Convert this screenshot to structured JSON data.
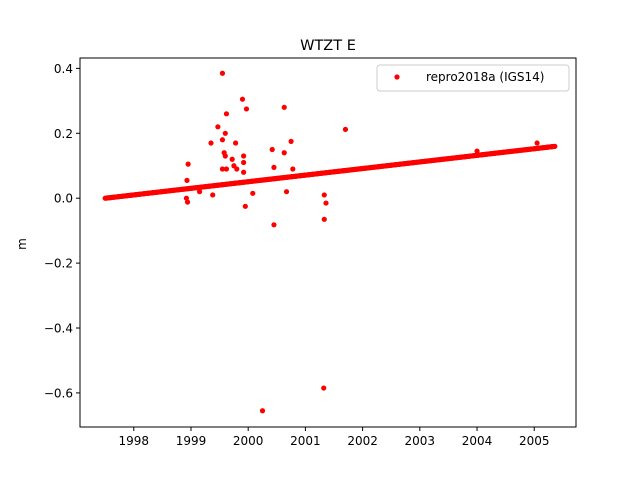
{
  "chart_data": {
    "type": "scatter",
    "title": "WTZT E",
    "xlabel": "",
    "ylabel": "m",
    "xlim": [
      1997.06,
      2005.73
    ],
    "ylim": [
      -0.705,
      0.432
    ],
    "x_ticks": [
      1998,
      1999,
      2000,
      2001,
      2002,
      2003,
      2004,
      2005
    ],
    "x_tick_labels": [
      "1998",
      "1999",
      "2000",
      "2001",
      "2002",
      "2003",
      "2004",
      "2005"
    ],
    "y_ticks": [
      -0.6,
      -0.4,
      -0.2,
      0.0,
      0.2,
      0.4
    ],
    "y_tick_labels": [
      "−0.6",
      "−0.4",
      "−0.2",
      "0.0",
      "0.2",
      "0.4"
    ],
    "grid": false,
    "legend_position": "top-right",
    "series": [
      {
        "name": "repro2018a (IGS14)",
        "color": "#ff0000",
        "marker": "circle",
        "trend": {
          "x_start": 1997.5,
          "y_start": 0.0,
          "x_end": 2005.37,
          "y_end": 0.16,
          "step_years": 0.015
        },
        "outliers": [
          {
            "x": 1998.95,
            "y": 0.105
          },
          {
            "x": 1998.93,
            "y": 0.055
          },
          {
            "x": 1998.92,
            "y": 0.0
          },
          {
            "x": 1998.94,
            "y": -0.012
          },
          {
            "x": 1999.15,
            "y": 0.02
          },
          {
            "x": 1999.35,
            "y": 0.17
          },
          {
            "x": 1999.38,
            "y": 0.01
          },
          {
            "x": 1999.47,
            "y": 0.22
          },
          {
            "x": 1999.55,
            "y": 0.385
          },
          {
            "x": 1999.55,
            "y": 0.18
          },
          {
            "x": 1999.58,
            "y": 0.14
          },
          {
            "x": 1999.6,
            "y": 0.2
          },
          {
            "x": 1999.62,
            "y": 0.26
          },
          {
            "x": 1999.55,
            "y": 0.09
          },
          {
            "x": 1999.62,
            "y": 0.09
          },
          {
            "x": 1999.6,
            "y": 0.13
          },
          {
            "x": 1999.72,
            "y": 0.12
          },
          {
            "x": 1999.75,
            "y": 0.1
          },
          {
            "x": 1999.78,
            "y": 0.17
          },
          {
            "x": 1999.8,
            "y": 0.09
          },
          {
            "x": 1999.9,
            "y": 0.305
          },
          {
            "x": 1999.92,
            "y": 0.13
          },
          {
            "x": 1999.92,
            "y": 0.11
          },
          {
            "x": 1999.92,
            "y": 0.08
          },
          {
            "x": 1999.97,
            "y": 0.275
          },
          {
            "x": 1999.95,
            "y": -0.025
          },
          {
            "x": 2000.08,
            "y": 0.015
          },
          {
            "x": 2000.25,
            "y": -0.655
          },
          {
            "x": 2000.42,
            "y": 0.15
          },
          {
            "x": 2000.45,
            "y": 0.095
          },
          {
            "x": 2000.45,
            "y": -0.082
          },
          {
            "x": 2000.63,
            "y": 0.28
          },
          {
            "x": 2000.63,
            "y": 0.14
          },
          {
            "x": 2000.67,
            "y": 0.02
          },
          {
            "x": 2000.75,
            "y": 0.175
          },
          {
            "x": 2000.78,
            "y": 0.09
          },
          {
            "x": 2001.33,
            "y": 0.01
          },
          {
            "x": 2001.36,
            "y": -0.015
          },
          {
            "x": 2001.33,
            "y": -0.065
          },
          {
            "x": 2001.32,
            "y": -0.585
          },
          {
            "x": 2001.7,
            "y": 0.212
          },
          {
            "x": 2004.0,
            "y": 0.145
          },
          {
            "x": 2005.05,
            "y": 0.17
          }
        ]
      }
    ]
  }
}
